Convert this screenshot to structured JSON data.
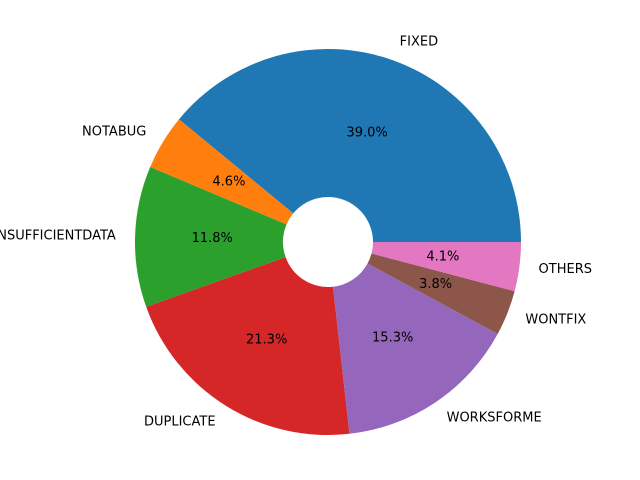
{
  "chart_data": {
    "type": "pie",
    "donut": true,
    "start_angle_deg": 0,
    "direction": "counterclockwise",
    "slices": [
      {
        "label": "FIXED",
        "value": 39.0,
        "pct_text": "39.0%",
        "color": "#1f77b4"
      },
      {
        "label": "NOTABUG",
        "value": 4.6,
        "pct_text": "4.6%",
        "color": "#ff7f0e"
      },
      {
        "label": "INSUFFICIENTDATA",
        "value": 11.8,
        "pct_text": "11.8%",
        "color": "#2ca02c"
      },
      {
        "label": "DUPLICATE",
        "value": 21.3,
        "pct_text": "21.3%",
        "color": "#d62728"
      },
      {
        "label": "WORKSFORME",
        "value": 15.3,
        "pct_text": "15.3%",
        "color": "#9467bd"
      },
      {
        "label": "WONTFIX",
        "value": 3.8,
        "pct_text": "3.8%",
        "color": "#8c564b"
      },
      {
        "label": "OTHERS",
        "value": 4.1,
        "pct_text": "4.1%",
        "color": "#e377c2"
      }
    ]
  }
}
